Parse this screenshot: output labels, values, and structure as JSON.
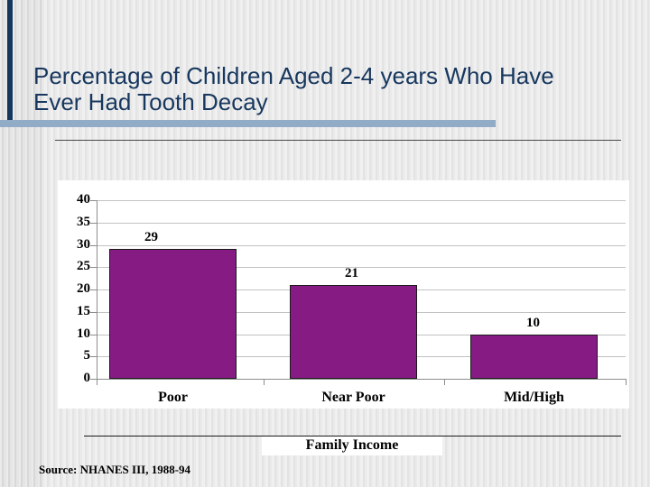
{
  "title": {
    "line1": "Percentage of Children Aged 2-4 years Who Have",
    "line2": "Ever Had Tooth Decay"
  },
  "source_note": "Source: NHANES III, 1988-94",
  "chart_data": {
    "type": "bar",
    "title": "Percentage of Children Aged 2-4 years Who Have Ever Had Tooth Decay",
    "categories": [
      "Poor",
      "Near Poor",
      "Mid/High"
    ],
    "values": [
      29,
      21,
      10
    ],
    "value_labels": [
      "29",
      "21",
      "10"
    ],
    "xlabel": "Family Income",
    "ylabel": "",
    "ylim": [
      0,
      40
    ],
    "yticks": [
      0,
      5,
      10,
      15,
      20,
      25,
      30,
      35,
      40
    ],
    "grid": true,
    "legend_position": "none",
    "source": "Source: NHANES III, 1988-94"
  },
  "colors": {
    "title_text": "#17375E",
    "accent_strip": "#16365C",
    "accent_hbar": "#92ABC7",
    "bar_fill": "#871B84",
    "bar_border": "#1A1A1A",
    "gridline": "#C2C2C2",
    "axis": "#8C8C8C"
  }
}
